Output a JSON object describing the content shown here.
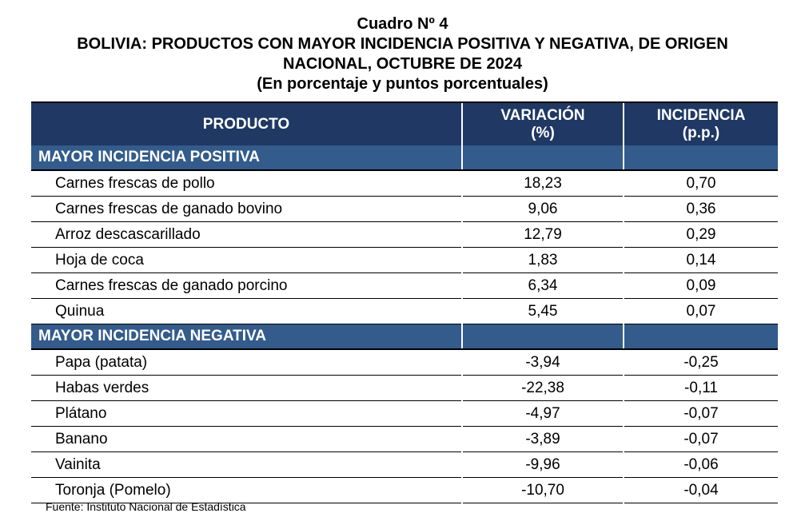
{
  "header": {
    "cuadro": "Cuadro Nº 4",
    "title_line1": "BOLIVIA: PRODUCTOS CON MAYOR INCIDENCIA POSITIVA Y NEGATIVA, DE ORIGEN",
    "title_line2": "NACIONAL, OCTUBRE DE 2024",
    "subtitle": "(En porcentaje y puntos porcentuales)"
  },
  "table": {
    "columns": {
      "producto": "PRODUCTO",
      "variacion_line1": "VARIACIÓN",
      "variacion_line2": "(%)",
      "incidencia_line1": "INCIDENCIA",
      "incidencia_line2": "(p.p.)"
    },
    "positive": {
      "label": "MAYOR INCIDENCIA POSITIVA",
      "rows": [
        {
          "producto": "Carnes frescas de pollo",
          "variacion": "18,23",
          "incidencia": "0,70"
        },
        {
          "producto": "Carnes frescas de ganado bovino",
          "variacion": "9,06",
          "incidencia": "0,36"
        },
        {
          "producto": "Arroz descascarillado",
          "variacion": "12,79",
          "incidencia": "0,29"
        },
        {
          "producto": "Hoja de coca",
          "variacion": "1,83",
          "incidencia": "0,14"
        },
        {
          "producto": "Carnes frescas de ganado porcino",
          "variacion": "6,34",
          "incidencia": "0,09"
        },
        {
          "producto": "Quinua",
          "variacion": "5,45",
          "incidencia": "0,07"
        }
      ]
    },
    "negative": {
      "label": "MAYOR INCIDENCIA NEGATIVA",
      "rows": [
        {
          "producto": "Papa (patata)",
          "variacion": "-3,94",
          "incidencia": "-0,25"
        },
        {
          "producto": "Habas verdes",
          "variacion": "-22,38",
          "incidencia": "-0,11"
        },
        {
          "producto": "Plátano",
          "variacion": "-4,97",
          "incidencia": "-0,07"
        },
        {
          "producto": "Banano",
          "variacion": "-3,89",
          "incidencia": "-0,07"
        },
        {
          "producto": "Vainita",
          "variacion": "-9,96",
          "incidencia": "-0,06"
        },
        {
          "producto": "Toronja (Pomelo)",
          "variacion": "-10,70",
          "incidencia": "-0,04"
        }
      ]
    }
  },
  "footer": {
    "source": "Fuente: Instituto Nacional de Estadística"
  },
  "colors": {
    "header_bg": "#1f3864",
    "section_bg": "#335b8c"
  }
}
